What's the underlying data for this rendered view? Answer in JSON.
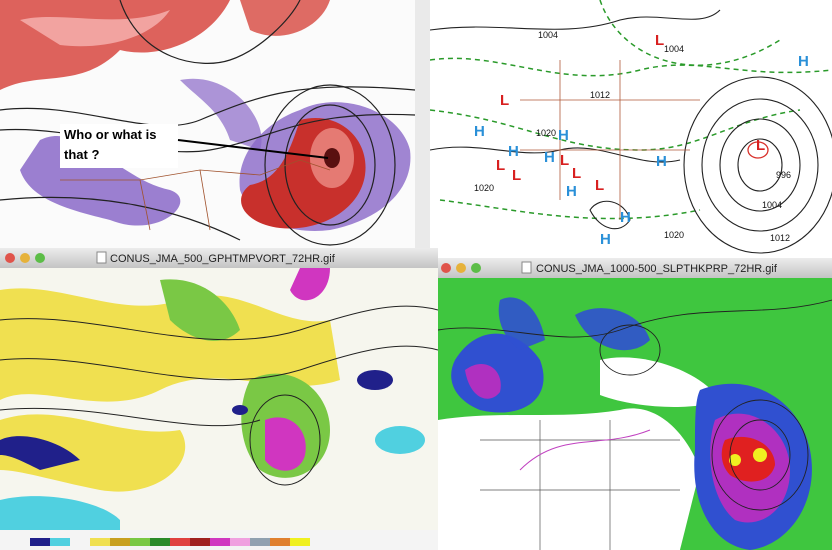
{
  "annotation": {
    "lines": [
      "Who or what is",
      "that ?"
    ]
  },
  "windows": [
    {
      "title": "CONUS_JMA_500_GPHTMPVORT_72HR.gif"
    },
    {
      "title": "CONUS_JMA_1000-500_SLPTHKPRP_72HR.gif"
    }
  ],
  "surface_map": {
    "isobar_labels": [
      "1004",
      "1004",
      "1012",
      "1020",
      "1020",
      "1020",
      "996",
      "1004",
      "1012"
    ],
    "lows": [
      "L",
      "L",
      "L",
      "L",
      "L",
      "L",
      "L",
      "L"
    ],
    "highs": [
      "H",
      "H",
      "H",
      "H",
      "H",
      "H",
      "H",
      "H",
      "H"
    ]
  }
}
